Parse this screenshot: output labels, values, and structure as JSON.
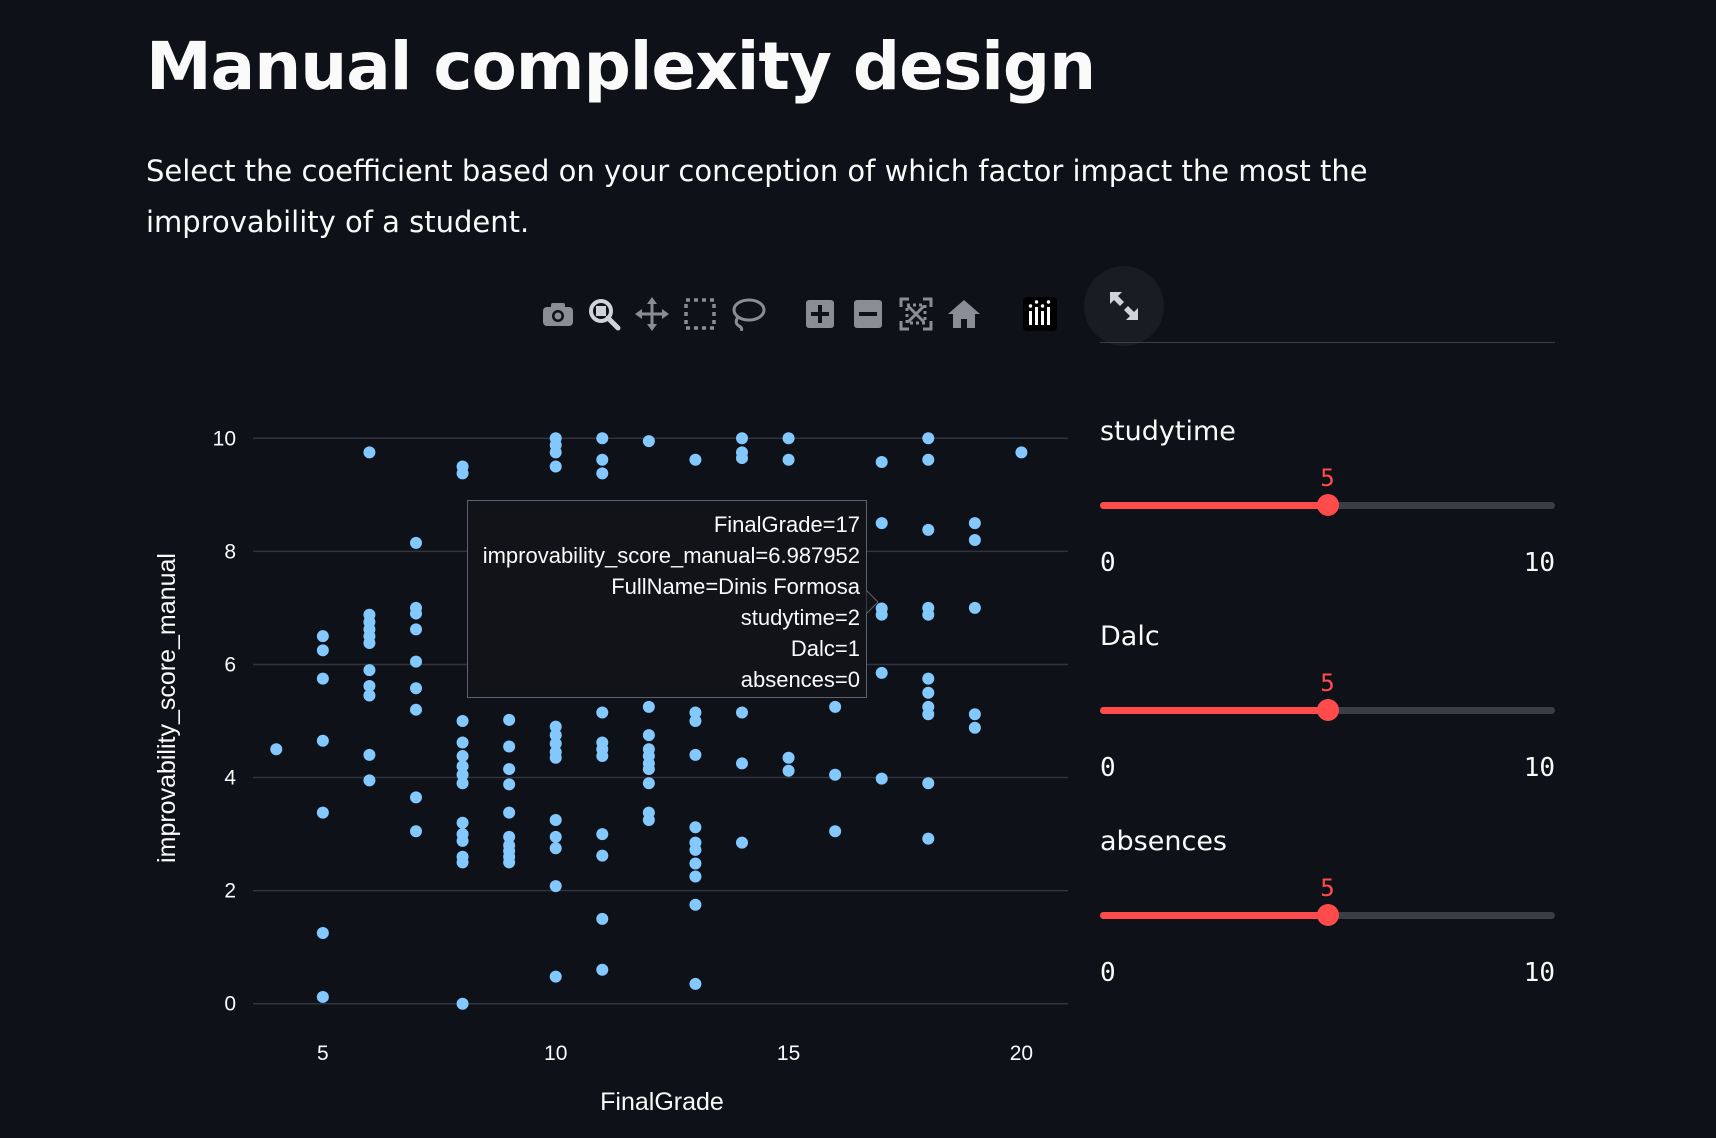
{
  "page": {
    "title": "Manual complexity design",
    "subtitle": "Select the coefficient based on your conception of which factor impact the most the improvability of a student."
  },
  "toolbar": {
    "buttons": [
      "camera-icon",
      "zoom-icon",
      "pan-icon",
      "box-select-icon",
      "lasso-select-icon",
      "zoom-in-icon",
      "zoom-out-icon",
      "autoscale-icon",
      "reset-axes-icon",
      "plotly-logo-icon"
    ],
    "expand": "fullscreen-expand-icon"
  },
  "sliders": [
    {
      "label": "studytime",
      "value": 5,
      "min": 0,
      "max": 10
    },
    {
      "label": "Dalc",
      "value": 5,
      "min": 0,
      "max": 10
    },
    {
      "label": "absences",
      "value": 5,
      "min": 0,
      "max": 10
    }
  ],
  "tooltip": {
    "lines": [
      "FinalGrade=17",
      "improvability_score_manual=6.987952",
      "FullName=Dinis Formosa",
      "studytime=2",
      "Dalc=1",
      "absences=0"
    ]
  },
  "colors": {
    "background": "#0e1117",
    "marker": "#83c9ff",
    "accent": "#ff4b4b",
    "grid": "#31333f"
  },
  "chart_data": {
    "type": "scatter",
    "title": "",
    "xlabel": "FinalGrade",
    "ylabel": "improvability_score_manual",
    "xlim": [
      3.5,
      21
    ],
    "ylim": [
      -0.5,
      10.5
    ],
    "xticks": [
      5,
      10,
      15,
      20
    ],
    "yticks": [
      0,
      2,
      4,
      6,
      8,
      10
    ],
    "grid": "horizontal",
    "legend": "none",
    "points": [
      [
        4,
        4.5
      ],
      [
        5,
        6.5
      ],
      [
        5,
        6.25
      ],
      [
        5,
        5.75
      ],
      [
        5,
        4.65
      ],
      [
        5,
        3.38
      ],
      [
        5,
        1.25
      ],
      [
        5,
        0.12
      ],
      [
        6,
        9.75
      ],
      [
        6,
        6.88
      ],
      [
        6,
        6.75
      ],
      [
        6,
        6.62
      ],
      [
        6,
        6.5
      ],
      [
        6,
        6.38
      ],
      [
        6,
        5.9
      ],
      [
        6,
        5.62
      ],
      [
        6,
        5.45
      ],
      [
        6,
        4.4
      ],
      [
        6,
        3.95
      ],
      [
        7,
        8.15
      ],
      [
        7,
        7.0
      ],
      [
        7,
        6.9
      ],
      [
        7,
        6.62
      ],
      [
        7,
        6.05
      ],
      [
        7,
        5.58
      ],
      [
        7,
        5.2
      ],
      [
        7,
        3.65
      ],
      [
        7,
        3.05
      ],
      [
        8,
        9.5
      ],
      [
        8,
        9.38
      ],
      [
        8,
        5.0
      ],
      [
        8,
        4.62
      ],
      [
        8,
        4.38
      ],
      [
        8,
        4.2
      ],
      [
        8,
        4.05
      ],
      [
        8,
        3.9
      ],
      [
        8,
        3.2
      ],
      [
        8,
        3.0
      ],
      [
        8,
        2.88
      ],
      [
        8,
        2.6
      ],
      [
        8,
        2.5
      ],
      [
        8,
        0.0
      ],
      [
        9,
        5.02
      ],
      [
        9,
        4.55
      ],
      [
        9,
        4.15
      ],
      [
        9,
        3.88
      ],
      [
        9,
        3.38
      ],
      [
        9,
        2.95
      ],
      [
        9,
        2.8
      ],
      [
        9,
        2.7
      ],
      [
        9,
        2.6
      ],
      [
        9,
        2.5
      ],
      [
        10,
        10.0
      ],
      [
        10,
        9.88
      ],
      [
        10,
        9.75
      ],
      [
        10,
        9.5
      ],
      [
        10,
        4.9
      ],
      [
        10,
        4.75
      ],
      [
        10,
        4.6
      ],
      [
        10,
        4.45
      ],
      [
        10,
        4.35
      ],
      [
        10,
        3.25
      ],
      [
        10,
        2.95
      ],
      [
        10,
        2.75
      ],
      [
        10,
        2.08
      ],
      [
        10,
        0.48
      ],
      [
        11,
        10.0
      ],
      [
        11,
        9.62
      ],
      [
        11,
        9.38
      ],
      [
        11,
        5.15
      ],
      [
        11,
        4.62
      ],
      [
        11,
        4.5
      ],
      [
        11,
        4.38
      ],
      [
        11,
        3.0
      ],
      [
        11,
        2.62
      ],
      [
        11,
        1.5
      ],
      [
        11,
        0.6
      ],
      [
        12,
        9.95
      ],
      [
        12,
        5.25
      ],
      [
        12,
        4.75
      ],
      [
        12,
        4.5
      ],
      [
        12,
        4.38
      ],
      [
        12,
        4.25
      ],
      [
        12,
        4.15
      ],
      [
        12,
        3.9
      ],
      [
        12,
        3.38
      ],
      [
        12,
        3.25
      ],
      [
        13,
        9.62
      ],
      [
        13,
        5.15
      ],
      [
        13,
        5.0
      ],
      [
        13,
        4.4
      ],
      [
        13,
        3.12
      ],
      [
        13,
        2.85
      ],
      [
        13,
        2.72
      ],
      [
        13,
        2.48
      ],
      [
        13,
        2.25
      ],
      [
        13,
        1.75
      ],
      [
        13,
        0.35
      ],
      [
        14,
        10.0
      ],
      [
        14,
        9.75
      ],
      [
        14,
        9.65
      ],
      [
        14,
        5.15
      ],
      [
        14,
        4.25
      ],
      [
        14,
        2.85
      ],
      [
        15,
        10.0
      ],
      [
        15,
        9.62
      ],
      [
        15,
        4.35
      ],
      [
        15,
        4.12
      ],
      [
        16,
        5.25
      ],
      [
        16,
        4.05
      ],
      [
        16,
        3.05
      ],
      [
        17,
        9.58
      ],
      [
        17,
        8.5
      ],
      [
        17,
        6.99
      ],
      [
        17,
        6.88
      ],
      [
        17,
        5.85
      ],
      [
        17,
        3.98
      ],
      [
        18,
        10.0
      ],
      [
        18,
        9.62
      ],
      [
        18,
        8.38
      ],
      [
        18,
        7.0
      ],
      [
        18,
        6.88
      ],
      [
        18,
        5.75
      ],
      [
        18,
        5.5
      ],
      [
        18,
        5.25
      ],
      [
        18,
        5.12
      ],
      [
        18,
        3.9
      ],
      [
        18,
        2.92
      ],
      [
        19,
        8.5
      ],
      [
        19,
        8.2
      ],
      [
        19,
        7.0
      ],
      [
        19,
        5.12
      ],
      [
        19,
        4.88
      ],
      [
        20,
        9.75
      ]
    ]
  }
}
